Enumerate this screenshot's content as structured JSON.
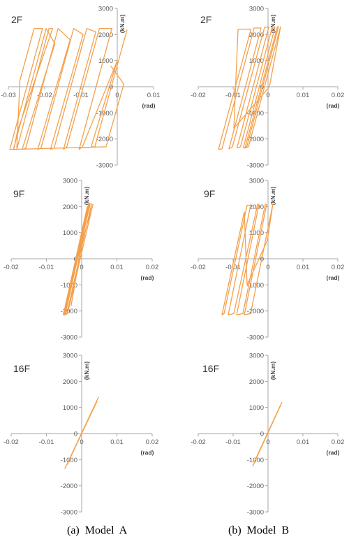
{
  "chart_data": [
    {
      "type": "line",
      "panel": "2F",
      "model": "A",
      "xlabel": "(rad)",
      "ylabel": "(kN.m)",
      "xlim": [
        -0.03,
        0.01
      ],
      "ylim": [
        -3000,
        3000
      ],
      "xticks": [
        "-0.03",
        "-0.02",
        "-0.01",
        "0",
        "0.01"
      ],
      "yticks": [
        "3000",
        "2000",
        "1000",
        "0",
        "-1000",
        "-2000",
        "-3000"
      ],
      "series": [
        {
          "x": [
            0.0027,
            -0.0062,
            -0.0072,
            0.0,
            -0.0096,
            -0.0105,
            -0.0015,
            -0.0014,
            -0.0023,
            -0.0049,
            -0.0139,
            -0.0148,
            -0.0059,
            -0.0084,
            -0.0174,
            -0.0184,
            -0.0094,
            -0.012,
            -0.021,
            -0.0219,
            -0.013,
            -0.0163,
            -0.0252,
            -0.0262,
            -0.0172,
            -0.0196,
            -0.0286,
            -0.0296,
            -0.0206,
            -0.0226,
            -0.0229,
            -0.0268,
            -0.0277,
            -0.0188,
            -0.0178,
            -0.0275,
            -0.0285,
            -0.0031,
            0.0018,
            -0.0018
          ],
          "y": [
            2180,
            -2300,
            -2300,
            1000,
            -2300,
            -2400,
            2230,
            2230,
            2230,
            2230,
            -2300,
            -2400,
            2100,
            2230,
            -2350,
            -2400,
            2000,
            2230,
            -2350,
            -2400,
            1800,
            2230,
            -2350,
            -2400,
            1650,
            2230,
            -2400,
            -2400,
            2230,
            2230,
            2230,
            250,
            -2400,
            2230,
            2230,
            -1700,
            -2400,
            -2300,
            100,
            800
          ]
        }
      ]
    },
    {
      "type": "line",
      "panel": "2F",
      "model": "B",
      "xlabel": "(rad)",
      "ylabel": "(kN.m)",
      "xlim": [
        -0.02,
        0.02
      ],
      "ylim": [
        -3000,
        3000
      ],
      "xticks": [
        "-0.02",
        "-0.01",
        "0",
        "0.01",
        "0.02"
      ],
      "yticks": [
        "3000",
        "2000",
        "1000",
        "0",
        "-1000",
        "-2000",
        "-3000"
      ],
      "series": [
        {
          "x": [
            0.0036,
            -0.0056,
            -0.0066,
            0.0027,
            0.003,
            -0.0061,
            -0.0071,
            0.002,
            0.0012,
            -0.0079,
            -0.0089,
            0.0002,
            -0.001,
            -0.0102,
            -0.0112,
            -0.002,
            -0.004,
            -0.0132,
            -0.0142,
            -0.0049,
            -0.0086,
            -0.0098,
            0.0004,
            0.0036
          ],
          "y": [
            2300,
            -2300,
            -2350,
            2300,
            2300,
            -2300,
            -2350,
            2280,
            2280,
            -2300,
            -2350,
            2280,
            2280,
            -2300,
            -2380,
            2250,
            2250,
            -2380,
            -2400,
            2200,
            2200,
            -1600,
            0,
            2300
          ]
        }
      ]
    },
    {
      "type": "line",
      "panel": "9F",
      "model": "A",
      "xlabel": "(rad)",
      "ylabel": "(kN.m)",
      "xlim": [
        -0.02,
        0.02
      ],
      "ylim": [
        -3000,
        3000
      ],
      "xticks": [
        "-0.02",
        "-0.01",
        "0",
        "0.01",
        "0.02"
      ],
      "yticks": [
        "3000",
        "2000",
        "1000",
        "0",
        "-1000",
        "-2000",
        "-3000"
      ],
      "series": [
        {
          "x": [
            0.0032,
            -0.004,
            -0.0048,
            0.0024,
            0.0028,
            -0.0042,
            -0.005,
            0.002,
            0.0022,
            -0.0046,
            -0.0052,
            0.0016,
            0.0018,
            -0.003,
            -0.0002,
            0.0032
          ],
          "y": [
            2100,
            -2100,
            -2150,
            2100,
            2100,
            -2100,
            -2150,
            2080,
            2080,
            -2100,
            -2150,
            2000,
            2000,
            -1800,
            500,
            2100
          ]
        }
      ]
    },
    {
      "type": "line",
      "panel": "9F",
      "model": "B",
      "xlabel": "(rad)",
      "ylabel": "(kN.m)",
      "xlim": [
        -0.02,
        0.02
      ],
      "ylim": [
        -3000,
        3000
      ],
      "xticks": [
        "-0.02",
        "-0.01",
        "0",
        "0.01",
        "0.02"
      ],
      "yticks": [
        "3000",
        "2000",
        "1000",
        "0",
        "-1000",
        "-2000",
        "-3000"
      ],
      "series": [
        {
          "x": [
            0.0014,
            -0.005,
            -0.0068,
            -0.0004,
            -0.0008,
            -0.0072,
            -0.009,
            -0.0026,
            -0.003,
            -0.0098,
            -0.0114,
            -0.005,
            -0.006,
            -0.0126,
            -0.0132,
            -0.0068,
            -0.006,
            -0.0002,
            0.0014
          ],
          "y": [
            2100,
            -2100,
            -2150,
            2080,
            2080,
            -2100,
            -2150,
            2080,
            2080,
            -2100,
            -2150,
            2050,
            2050,
            -2100,
            -2150,
            1800,
            -1000,
            700,
            2100
          ]
        }
      ]
    },
    {
      "type": "line",
      "panel": "16F",
      "model": "A",
      "xlabel": "(rad)",
      "ylabel": "(kN.m)",
      "xlim": [
        -0.02,
        0.02
      ],
      "ylim": [
        -3000,
        3000
      ],
      "xticks": [
        "-0.02",
        "-0.01",
        "0",
        "0.01",
        "0.02"
      ],
      "yticks": [
        "3000",
        "2000",
        "1000",
        "0",
        "-1000",
        "-2000",
        "-3000"
      ],
      "series": [
        {
          "x": [
            -0.0048,
            0.0048
          ],
          "y": [
            -1350,
            1400
          ]
        },
        {
          "x": [
            -0.0042,
            0.0044
          ],
          "y": [
            -1200,
            1250
          ]
        }
      ]
    },
    {
      "type": "line",
      "panel": "16F",
      "model": "B",
      "xlabel": "(rad)",
      "ylabel": "(kN.m)",
      "xlim": [
        -0.02,
        0.02
      ],
      "ylim": [
        -3000,
        3000
      ],
      "xticks": [
        "-0.02",
        "-0.01",
        "0",
        "0.01",
        "0.02"
      ],
      "yticks": [
        "3000",
        "2000",
        "1000",
        "0",
        "-1000",
        "-2000",
        "-3000"
      ],
      "series": [
        {
          "x": [
            -0.0044,
            0.004
          ],
          "y": [
            -1250,
            1200
          ]
        },
        {
          "x": [
            -0.004,
            0.0036
          ],
          "y": [
            -1100,
            1100
          ]
        }
      ]
    }
  ],
  "style": {
    "curve_color": "#F4A04B",
    "axis_color": "#A6A6A6"
  },
  "captions": {
    "left": "(a)  Model  A",
    "right": "(b)  Model  B"
  }
}
